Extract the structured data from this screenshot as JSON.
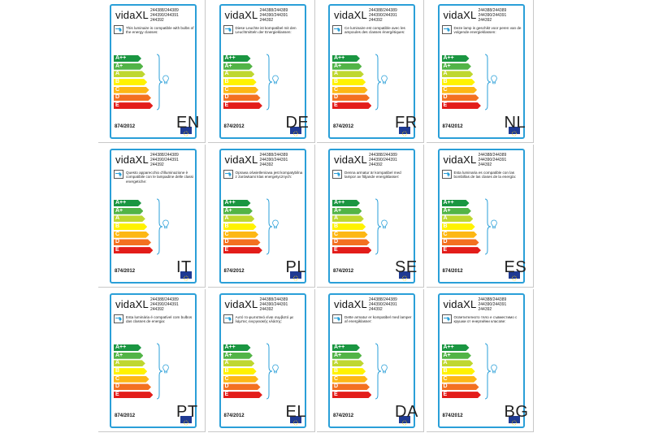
{
  "brand": "vidaXL",
  "product_codes": [
    "244388/244389",
    "244390/244391",
    "244392"
  ],
  "energy_classes": [
    "A++",
    "A+",
    "A",
    "B",
    "C",
    "D",
    "E"
  ],
  "class_colors": [
    "#1a9641",
    "#52b447",
    "#bfd730",
    "#fff200",
    "#fdb714",
    "#f37021",
    "#e31d1a"
  ],
  "regulation": "874/2012",
  "labels": [
    {
      "lang": "EN",
      "text": "This luminaire is compatible with bulbs of the energy classes:"
    },
    {
      "lang": "DE",
      "text": "Diese Leuchte ist kompatibel mit den Leuchtmitteln der Energieklassen:"
    },
    {
      "lang": "FR",
      "text": "Ce luminaire est compatible avec les ampoules des classes énergétiques:"
    },
    {
      "lang": "NL",
      "text": "Deze lamp is geschikt voor peren van de volgende energieklassen:"
    },
    {
      "lang": "IT",
      "text": "Questo apparecchio d'illuminazione è compatibile con le lampadine delle classi energetiche:"
    },
    {
      "lang": "PL",
      "text": "Oprawa oświetleniowa jest kompatybilna z żarówkami klas energetycznych:"
    },
    {
      "lang": "SE",
      "text": "Denna armatur är kompatibel med lampor av följande energiklasser:"
    },
    {
      "lang": "ES",
      "text": "Esta luminaria es compatible con las bombillas de las clases de la energía:"
    },
    {
      "lang": "PT",
      "text": "Esta luminária é compatível com bulbos das classes de energia:"
    },
    {
      "lang": "EL",
      "text": "Αυτό το φωτιστικό είναι συμβατό με λάμπες ενεργειακής κλάσης:"
    },
    {
      "lang": "DA",
      "text": "Dette armatur er kompatibel med lamper af energiklasser:"
    },
    {
      "lang": "BG",
      "text": "Осветителното тяло е съвместимо с крушки от енергийни класове:"
    }
  ]
}
